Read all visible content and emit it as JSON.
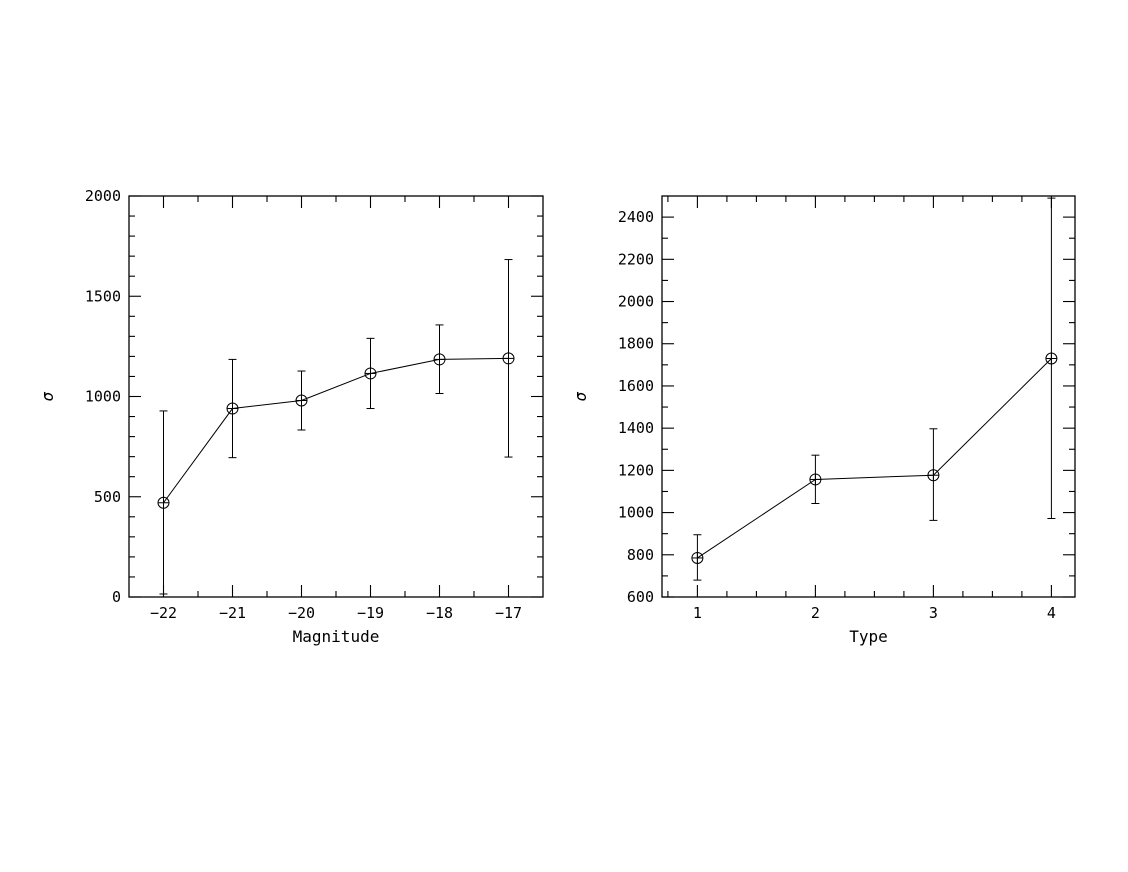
{
  "chart_data": [
    {
      "type": "line",
      "xlabel": "Magnitude",
      "ylabel": "σ",
      "xlim": [
        -22.5,
        -16.5
      ],
      "ylim": [
        0,
        2000
      ],
      "xticks": [
        -22,
        -21,
        -20,
        -19,
        -18,
        -17
      ],
      "xtick_labels": [
        "−22",
        "−21",
        "−20",
        "−19",
        "−18",
        "−17"
      ],
      "yticks": [
        0,
        500,
        1000,
        1500,
        2000
      ],
      "ytick_labels": [
        "0",
        "500",
        "1000",
        "1500",
        "2000"
      ],
      "x_minor_step": 0.5,
      "y_minor_step": 100,
      "grid": false,
      "series": [
        {
          "x": [
            -22,
            -21,
            -20,
            -19,
            -18,
            -17
          ],
          "y": [
            470,
            940,
            980,
            1115,
            1185,
            1190
          ],
          "err_low": [
            15,
            695,
            833,
            940,
            1015,
            698
          ],
          "err_high": [
            928,
            1185,
            1127,
            1290,
            1357,
            1683
          ],
          "marker": "circle-plus"
        }
      ]
    },
    {
      "type": "line",
      "xlabel": "Type",
      "ylabel": "σ",
      "xlim": [
        0.7,
        4.2
      ],
      "ylim": [
        600,
        2500
      ],
      "xticks": [
        1,
        2,
        3,
        4
      ],
      "xtick_labels": [
        "1",
        "2",
        "3",
        "4"
      ],
      "yticks": [
        600,
        800,
        1000,
        1200,
        1400,
        1600,
        1800,
        2000,
        2200,
        2400
      ],
      "ytick_labels": [
        "600",
        "800",
        "1000",
        "1200",
        "1400",
        "1600",
        "1800",
        "2000",
        "2200",
        "2400"
      ],
      "x_minor_step": 0.25,
      "y_minor_step": 100,
      "grid": false,
      "series": [
        {
          "x": [
            1,
            2,
            3,
            4
          ],
          "y": [
            785,
            1157,
            1177,
            1730
          ],
          "err_low": [
            680,
            1043,
            963,
            972
          ],
          "err_high": [
            895,
            1272,
            1397,
            2490
          ],
          "marker": "circle-plus"
        }
      ]
    }
  ]
}
